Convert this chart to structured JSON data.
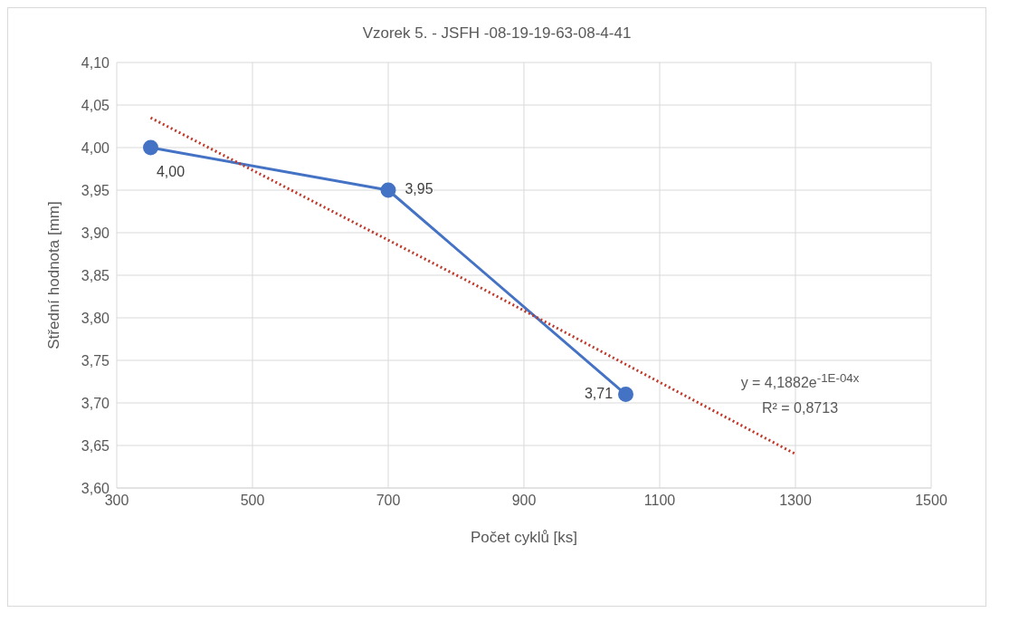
{
  "chart_data": {
    "type": "line",
    "title": "Vzorek 5. - JSFH -08-19-19-63-08-4-41",
    "xlabel": "Počet cyklů [ks]",
    "ylabel": "Střední hodnota [mm]",
    "series": [
      {
        "color": "#4472c4",
        "x": [
          350,
          700,
          1050
        ],
        "values": [
          4.0,
          3.95,
          3.71
        ],
        "value_labels": [
          "4,00",
          "3,95",
          "3,71"
        ],
        "marker": "circle",
        "line_style": "solid"
      },
      {
        "color": "#c0392b",
        "x": [
          350,
          825,
          1300
        ],
        "values": [
          4.035,
          3.84,
          3.64
        ],
        "marker": "none",
        "line_style": "dotted"
      }
    ],
    "xlim": [
      300,
      1500
    ],
    "xticks": [
      300,
      500,
      700,
      900,
      1100,
      1300,
      1500
    ],
    "ylim": [
      3.6,
      4.1
    ],
    "yticks": [
      {
        "value": 3.6,
        "label": "3,60"
      },
      {
        "value": 3.65,
        "label": "3,65"
      },
      {
        "value": 3.7,
        "label": "3,70"
      },
      {
        "value": 3.75,
        "label": "3,75"
      },
      {
        "value": 3.8,
        "label": "3,80"
      },
      {
        "value": 3.85,
        "label": "3,85"
      },
      {
        "value": 3.9,
        "label": "3,90"
      },
      {
        "value": 3.95,
        "label": "3,95"
      },
      {
        "value": 4.0,
        "label": "4,00"
      },
      {
        "value": 4.05,
        "label": "4,05"
      },
      {
        "value": 4.1,
        "label": "4,10"
      }
    ],
    "grid": true,
    "annotations": [
      "y = 4,1882e$^{-1E-04x}$",
      "R² = 0,8713"
    ]
  }
}
